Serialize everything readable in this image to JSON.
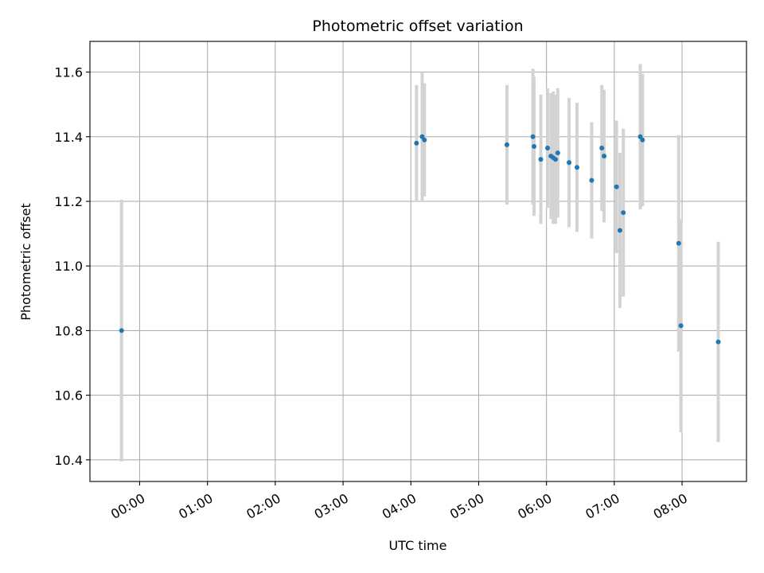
{
  "chart_data": {
    "type": "scatter",
    "title": "Photometric offset variation",
    "xlabel": "UTC time",
    "ylabel": "Photometric offset",
    "x_axis": "time",
    "xlim": [
      "23:16",
      "08:57"
    ],
    "ylim": [
      10.333,
      11.695
    ],
    "x_ticks": [
      "00:00",
      "01:00",
      "02:00",
      "03:00",
      "04:00",
      "05:00",
      "06:00",
      "07:00",
      "08:00"
    ],
    "y_ticks": [
      10.4,
      10.6,
      10.8,
      11.0,
      11.2,
      11.4,
      11.6
    ],
    "y_tick_labels": [
      "10.4",
      "10.6",
      "10.8",
      "11.0",
      "11.2",
      "11.4",
      "11.6"
    ],
    "grid": true,
    "legend": "none",
    "colors": {
      "points": "#1f77b4",
      "error_bars": "#d3d3d3",
      "grid": "#b0b0b0"
    },
    "points": [
      {
        "t": "23:44",
        "y": 10.8,
        "err": 0.405
      },
      {
        "t": "04:05",
        "y": 11.38,
        "err": 0.18
      },
      {
        "t": "04:10",
        "y": 11.4,
        "err": 0.2
      },
      {
        "t": "04:12",
        "y": 11.39,
        "err": 0.175
      },
      {
        "t": "05:25",
        "y": 11.375,
        "err": 0.185
      },
      {
        "t": "05:48",
        "y": 11.4,
        "err": 0.21
      },
      {
        "t": "05:49",
        "y": 11.37,
        "err": 0.215
      },
      {
        "t": "05:55",
        "y": 11.33,
        "err": 0.2
      },
      {
        "t": "06:01",
        "y": 11.365,
        "err": 0.185
      },
      {
        "t": "06:04",
        "y": 11.34,
        "err": 0.195
      },
      {
        "t": "06:06",
        "y": 11.335,
        "err": 0.205
      },
      {
        "t": "06:08",
        "y": 11.33,
        "err": 0.2
      },
      {
        "t": "06:10",
        "y": 11.35,
        "err": 0.2
      },
      {
        "t": "06:20",
        "y": 11.32,
        "err": 0.2
      },
      {
        "t": "06:27",
        "y": 11.305,
        "err": 0.2
      },
      {
        "t": "06:40",
        "y": 11.265,
        "err": 0.18
      },
      {
        "t": "06:49",
        "y": 11.365,
        "err": 0.195
      },
      {
        "t": "06:51",
        "y": 11.34,
        "err": 0.205
      },
      {
        "t": "07:02",
        "y": 11.245,
        "err": 0.205
      },
      {
        "t": "07:05",
        "y": 11.11,
        "err": 0.24
      },
      {
        "t": "07:08",
        "y": 11.165,
        "err": 0.26
      },
      {
        "t": "07:23",
        "y": 11.4,
        "err": 0.225
      },
      {
        "t": "07:25",
        "y": 11.39,
        "err": 0.205
      },
      {
        "t": "07:57",
        "y": 11.07,
        "err": 0.335
      },
      {
        "t": "07:59",
        "y": 10.815,
        "err": 0.33
      },
      {
        "t": "08:32",
        "y": 10.765,
        "err": 0.31
      }
    ]
  }
}
